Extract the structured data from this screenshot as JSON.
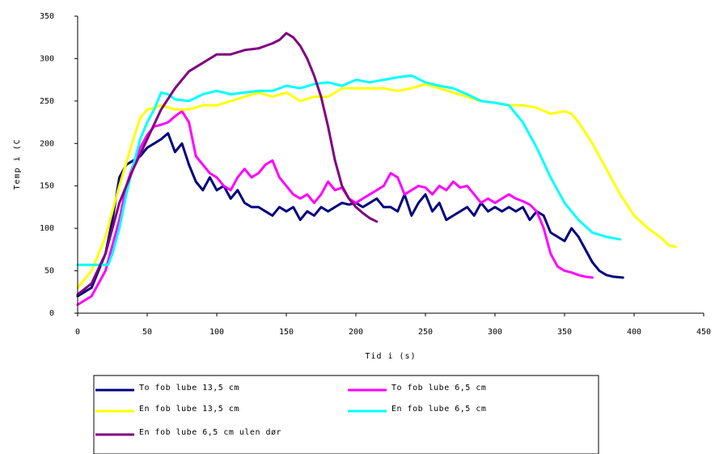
{
  "chart_data": {
    "type": "line",
    "xlabel": "Tid i (s)",
    "ylabel": "Temp i (C",
    "xlim": [
      0,
      450
    ],
    "ylim": [
      0,
      350
    ],
    "xticks": [
      0,
      50,
      100,
      150,
      200,
      250,
      300,
      350,
      400,
      450
    ],
    "xtick_labels": [
      "0",
      "50",
      "100",
      "150",
      "200",
      "250",
      "300",
      "350",
      "400",
      "450"
    ],
    "yticks": [
      0,
      50,
      100,
      150,
      200,
      250,
      300,
      350
    ],
    "ytick_labels": [
      "0",
      "50",
      "100",
      "150",
      "200",
      "250",
      "300",
      "350"
    ],
    "grid": false,
    "legend_position": "bottom",
    "series": [
      {
        "name": "To fob lube 13,5 cm",
        "color": "#000080",
        "x": [
          0,
          10,
          20,
          25,
          30,
          35,
          40,
          45,
          50,
          55,
          60,
          65,
          70,
          75,
          80,
          85,
          90,
          95,
          100,
          105,
          110,
          115,
          120,
          125,
          130,
          135,
          140,
          145,
          150,
          155,
          160,
          165,
          170,
          175,
          180,
          185,
          190,
          195,
          200,
          205,
          210,
          215,
          220,
          225,
          230,
          235,
          240,
          245,
          250,
          255,
          260,
          265,
          270,
          275,
          280,
          285,
          290,
          295,
          300,
          305,
          310,
          315,
          320,
          325,
          330,
          335,
          340,
          345,
          350,
          355,
          360,
          365,
          370,
          375,
          380,
          385,
          392
        ],
        "y": [
          20,
          30,
          70,
          110,
          160,
          175,
          180,
          185,
          195,
          200,
          205,
          212,
          190,
          200,
          175,
          155,
          145,
          160,
          145,
          150,
          135,
          145,
          130,
          125,
          125,
          120,
          115,
          125,
          120,
          125,
          110,
          120,
          115,
          125,
          120,
          125,
          130,
          128,
          130,
          125,
          130,
          135,
          125,
          125,
          120,
          140,
          115,
          130,
          140,
          120,
          130,
          110,
          115,
          120,
          125,
          115,
          130,
          120,
          125,
          120,
          125,
          120,
          125,
          110,
          120,
          115,
          95,
          90,
          85,
          100,
          90,
          75,
          60,
          50,
          45,
          43,
          42
        ]
      },
      {
        "name": "To fob lube 6,5 cm",
        "color": "#ff00ff",
        "x": [
          0,
          10,
          20,
          25,
          30,
          35,
          40,
          45,
          50,
          55,
          60,
          65,
          70,
          75,
          80,
          85,
          90,
          95,
          100,
          105,
          110,
          115,
          120,
          125,
          130,
          135,
          140,
          145,
          150,
          155,
          160,
          165,
          170,
          175,
          180,
          185,
          190,
          195,
          200,
          205,
          210,
          215,
          220,
          225,
          230,
          235,
          240,
          245,
          250,
          255,
          260,
          265,
          270,
          275,
          280,
          285,
          290,
          295,
          300,
          305,
          310,
          315,
          320,
          325,
          330,
          335,
          340,
          345,
          350,
          355,
          360,
          365,
          370
        ],
        "y": [
          10,
          20,
          50,
          80,
          110,
          150,
          175,
          195,
          210,
          220,
          222,
          225,
          232,
          238,
          225,
          185,
          175,
          165,
          160,
          150,
          145,
          160,
          170,
          160,
          165,
          175,
          180,
          160,
          150,
          140,
          135,
          140,
          130,
          140,
          155,
          145,
          148,
          135,
          130,
          135,
          140,
          145,
          150,
          165,
          160,
          140,
          145,
          150,
          148,
          140,
          150,
          145,
          155,
          148,
          150,
          140,
          130,
          135,
          130,
          135,
          140,
          135,
          132,
          128,
          120,
          100,
          70,
          55,
          50,
          48,
          45,
          43,
          42
        ]
      },
      {
        "name": "En fob lube 13,5 cm",
        "color": "#ffff00",
        "x": [
          0,
          10,
          20,
          30,
          40,
          45,
          50,
          55,
          60,
          70,
          80,
          90,
          100,
          110,
          120,
          130,
          140,
          150,
          160,
          170,
          180,
          190,
          200,
          210,
          220,
          230,
          240,
          250,
          260,
          270,
          280,
          290,
          300,
          310,
          320,
          330,
          340,
          350,
          355,
          360,
          370,
          380,
          390,
          400,
          410,
          420,
          425,
          430
        ],
        "y": [
          30,
          50,
          90,
          150,
          205,
          230,
          240,
          242,
          245,
          240,
          240,
          245,
          245,
          250,
          255,
          260,
          255,
          260,
          250,
          255,
          255,
          265,
          265,
          265,
          265,
          262,
          265,
          270,
          265,
          260,
          255,
          250,
          248,
          245,
          245,
          242,
          235,
          238,
          235,
          225,
          200,
          170,
          140,
          115,
          100,
          88,
          80,
          78
        ]
      },
      {
        "name": "En fob lube 6,5 cm",
        "color": "#00ffff",
        "x": [
          0,
          10,
          20,
          22,
          25,
          30,
          35,
          40,
          45,
          50,
          55,
          60,
          65,
          70,
          80,
          90,
          100,
          110,
          120,
          130,
          140,
          150,
          160,
          170,
          180,
          190,
          200,
          210,
          220,
          230,
          240,
          250,
          260,
          270,
          280,
          290,
          300,
          310,
          320,
          330,
          340,
          350,
          360,
          370,
          380,
          390
        ],
        "y": [
          57,
          57,
          57,
          57,
          70,
          100,
          140,
          175,
          205,
          225,
          240,
          260,
          258,
          252,
          250,
          258,
          262,
          258,
          260,
          262,
          262,
          268,
          265,
          270,
          272,
          268,
          275,
          272,
          275,
          278,
          280,
          272,
          268,
          265,
          258,
          250,
          248,
          245,
          225,
          195,
          160,
          130,
          110,
          95,
          90,
          87
        ]
      },
      {
        "name": "En fob lube 6,5 cm ulen dør",
        "color": "#800080",
        "x": [
          0,
          10,
          20,
          30,
          40,
          50,
          60,
          70,
          75,
          80,
          90,
          100,
          110,
          120,
          130,
          140,
          145,
          150,
          155,
          160,
          165,
          170,
          175,
          180,
          185,
          190,
          195,
          200,
          205,
          210,
          215
        ],
        "y": [
          22,
          35,
          70,
          130,
          170,
          205,
          240,
          265,
          275,
          285,
          295,
          305,
          305,
          310,
          312,
          318,
          322,
          330,
          325,
          315,
          300,
          280,
          255,
          220,
          180,
          150,
          135,
          125,
          118,
          112,
          108
        ]
      }
    ]
  }
}
